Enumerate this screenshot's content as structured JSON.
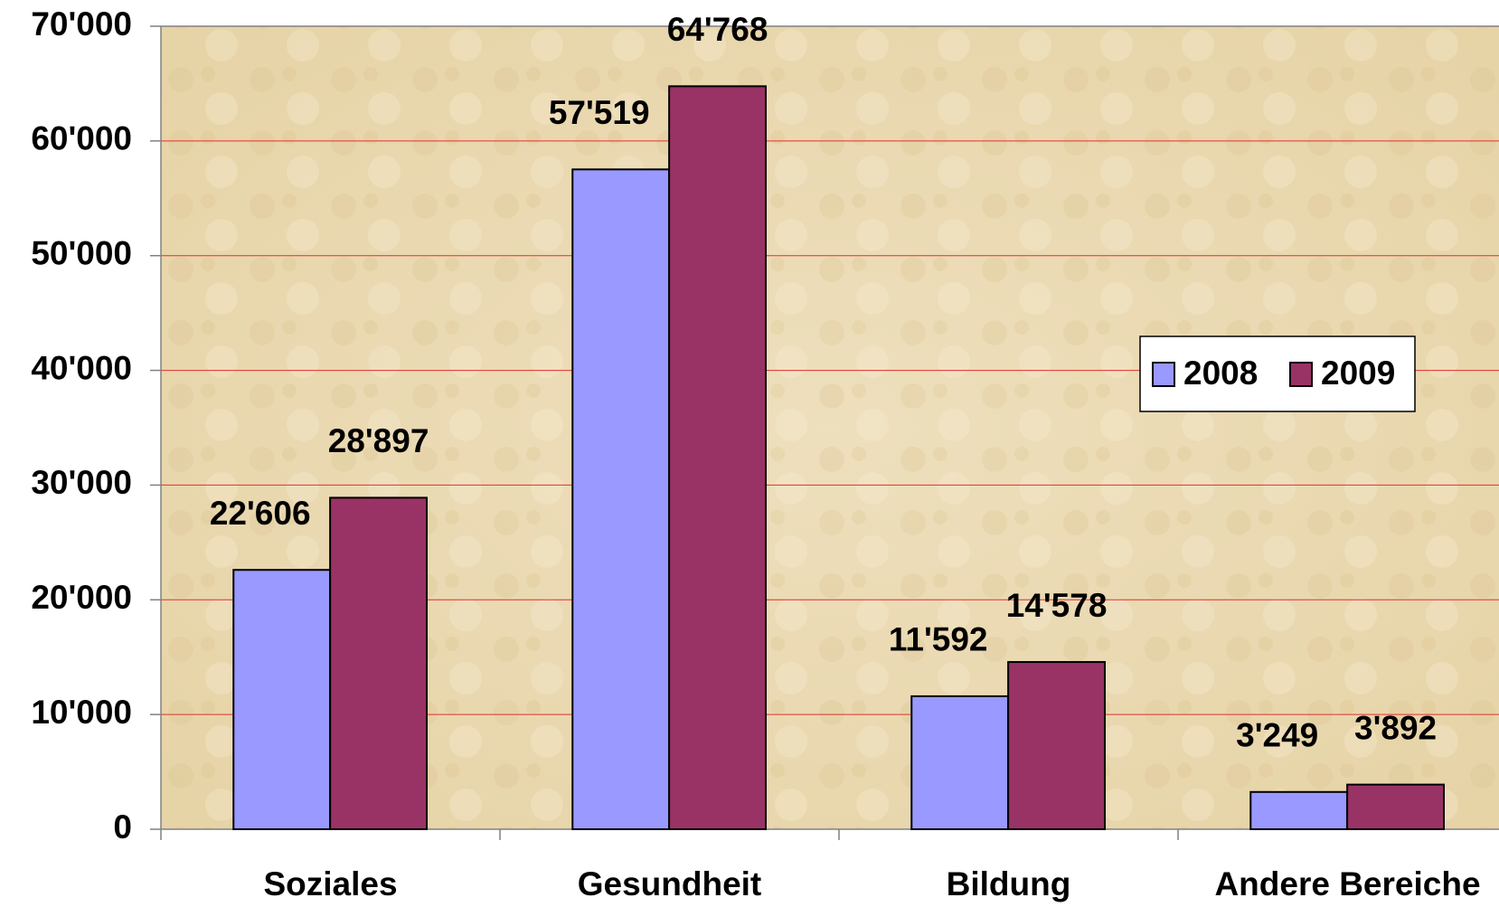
{
  "chart_data": {
    "type": "bar",
    "categories": [
      "Soziales",
      "Gesundheit",
      "Bildung",
      "Andere Bereiche"
    ],
    "series": [
      {
        "name": "2008",
        "color": "#9999ff",
        "values": [
          22606,
          57519,
          11592,
          3249
        ],
        "value_labels": [
          "22'606",
          "57'519",
          "11'592",
          "3'249"
        ]
      },
      {
        "name": "2009",
        "color": "#993366",
        "values": [
          28897,
          64768,
          14578,
          3892
        ],
        "value_labels": [
          "28'897",
          "64'768",
          "14'578",
          "3'892"
        ]
      }
    ],
    "ylim": [
      0,
      70000
    ],
    "yticks": [
      0,
      {
        "value": 10000,
        "label": "10'000"
      },
      {
        "value": 20000,
        "label": "20'000"
      },
      {
        "value": 30000,
        "label": "30'000"
      },
      {
        "value": 40000,
        "label": "40'000"
      },
      {
        "value": 50000,
        "label": "50'000"
      },
      {
        "value": 60000,
        "label": "60'000"
      },
      {
        "value": 70000,
        "label": "70'000"
      }
    ],
    "grid": true,
    "grid_color": "#e03030",
    "legend": "right"
  }
}
